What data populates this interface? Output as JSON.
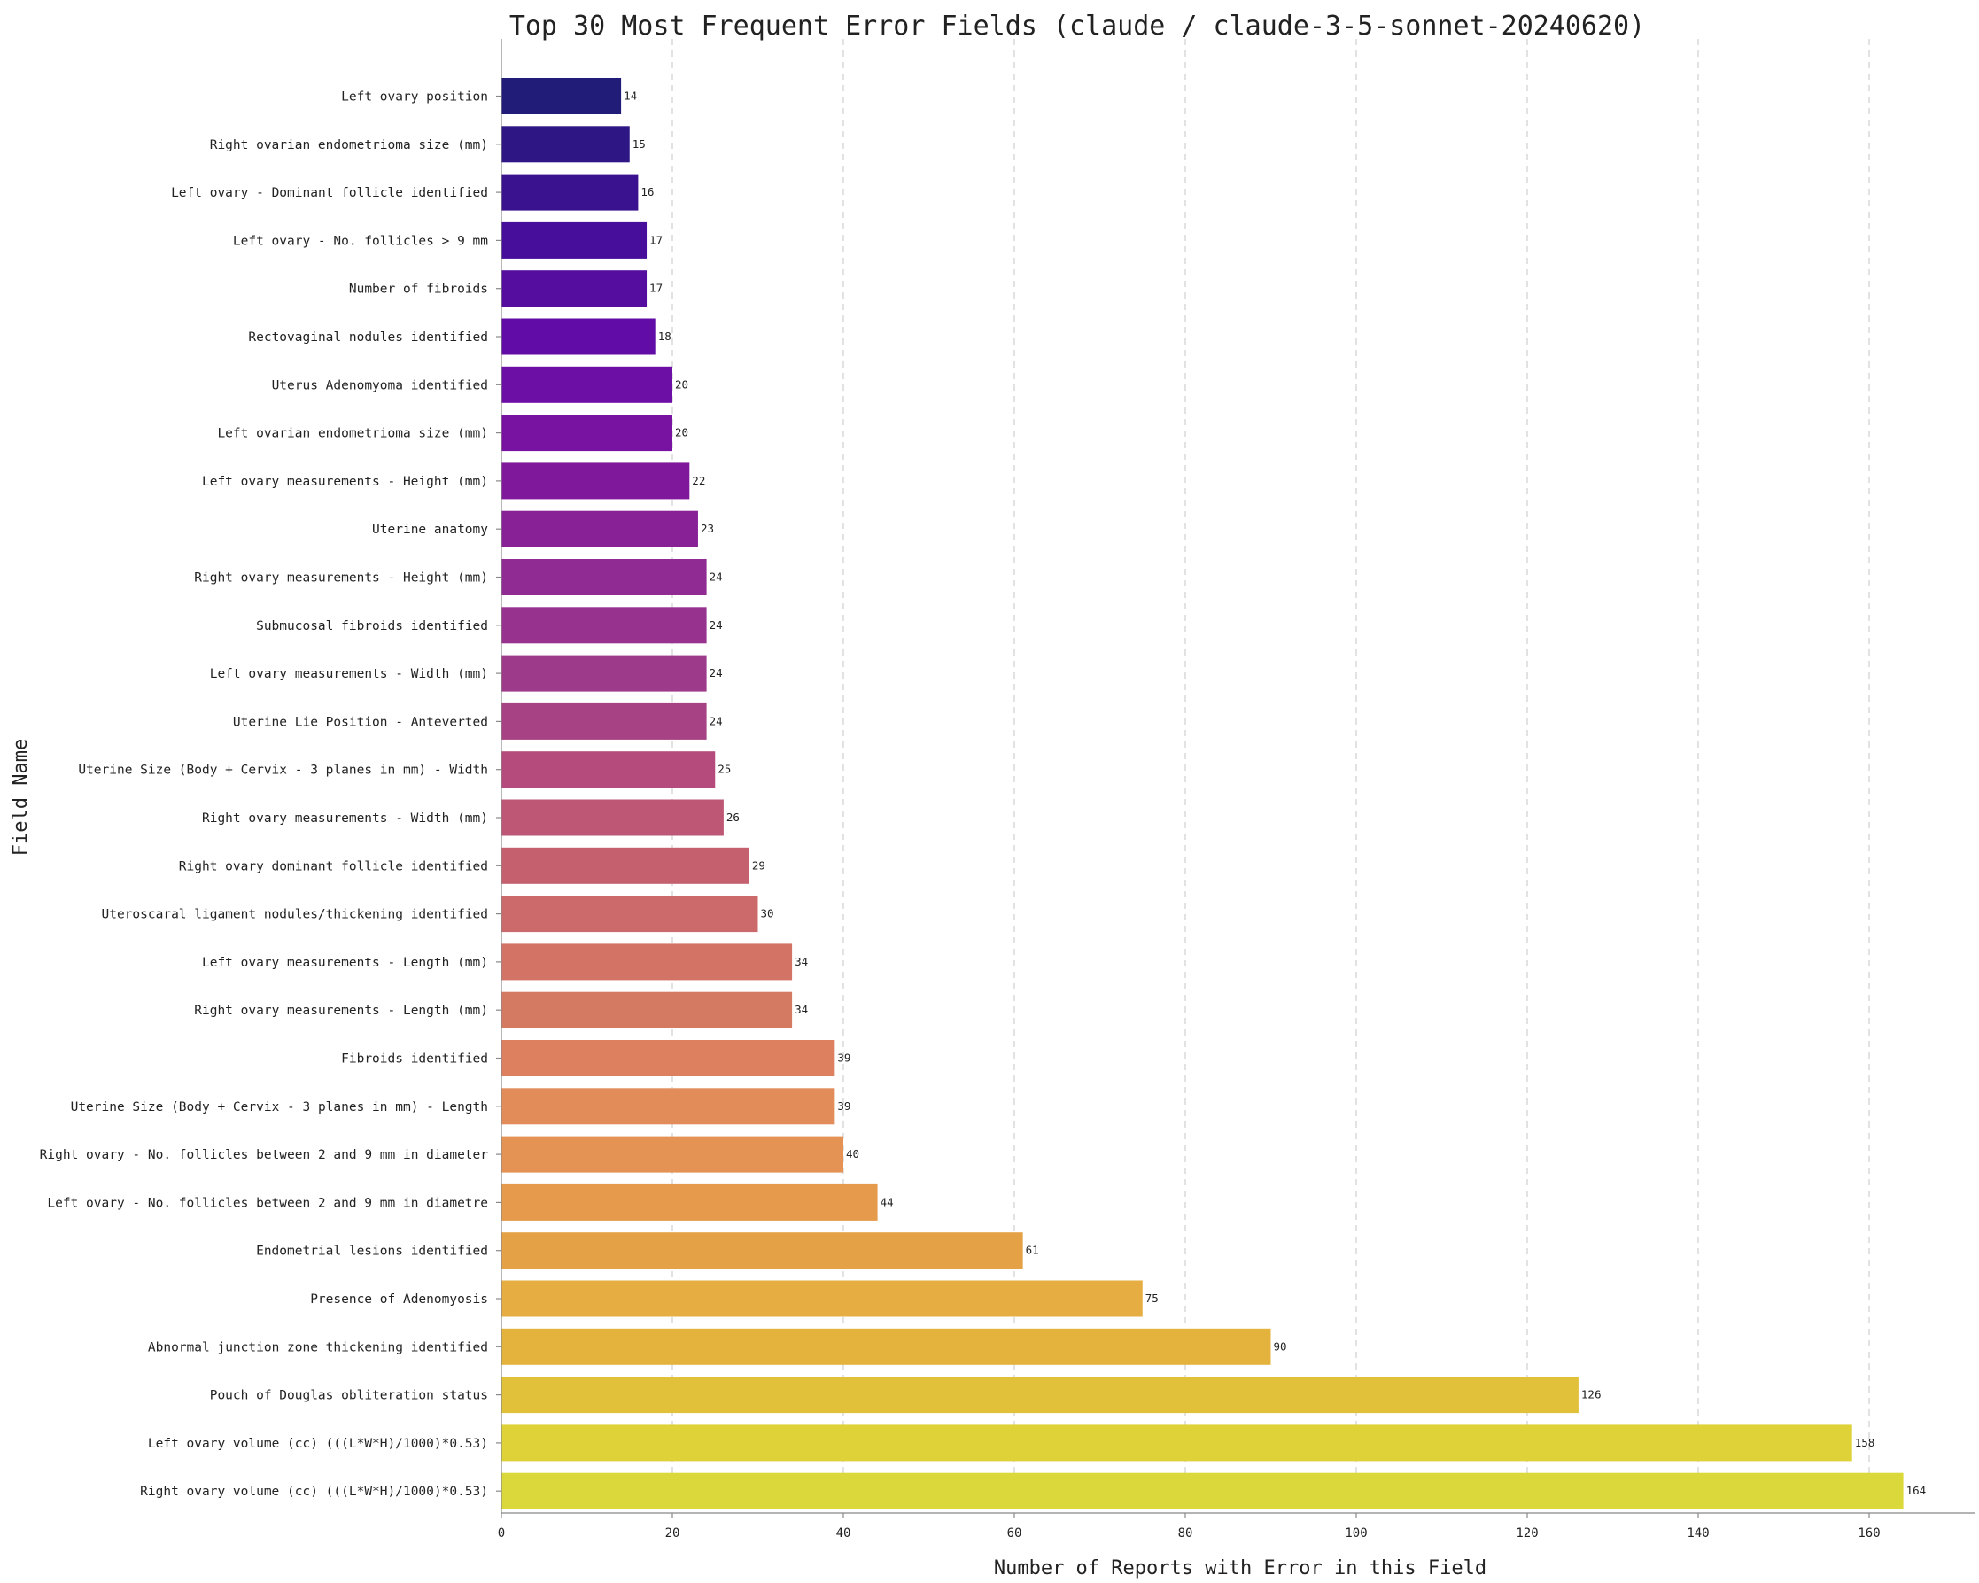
{
  "chart_data": {
    "type": "bar",
    "orientation": "horizontal",
    "title": "Top 30 Most Frequent Error Fields (claude / claude-3-5-sonnet-20240620)",
    "xlabel": "Number of Reports with Error in this Field",
    "ylabel": "Field Name",
    "xlim": [
      0,
      170
    ],
    "xticks": [
      0,
      20,
      40,
      60,
      80,
      100,
      120,
      140,
      160
    ],
    "grid": "x dashed",
    "legend": "none",
    "palette": "plasma",
    "categories": [
      "Left ovary position",
      "Right ovarian endometrioma size (mm)",
      "Left ovary - Dominant follicle identified",
      "Left ovary - No. follicles > 9 mm",
      "Number of fibroids",
      "Rectovaginal nodules identified",
      "Uterus Adenomyoma identified",
      "Left ovarian endometrioma size (mm)",
      "Left ovary measurements - Height (mm)",
      "Uterine anatomy",
      "Right ovary measurements - Height (mm)",
      "Submucosal fibroids identified",
      "Left ovary measurements - Width (mm)",
      "Uterine Lie Position - Anteverted",
      "Uterine Size (Body + Cervix - 3 planes in mm) - Width",
      "Right ovary measurements - Width (mm)",
      "Right ovary dominant follicle identified",
      "Uteroscaral ligament nodules/thickening identified",
      "Left ovary measurements - Length (mm)",
      "Right ovary measurements - Length (mm)",
      "Fibroids identified",
      "Uterine Size (Body + Cervix - 3 planes in mm) - Length",
      "Right ovary -  No. follicles between 2 and 9 mm in diameter",
      "Left ovary - No. follicles between 2 and 9 mm in diametre",
      "Endometrial lesions identified",
      "Presence of Adenomyosis",
      "Abnormal junction zone thickening identified",
      "Pouch of Douglas obliteration status",
      "Left ovary volume (cc) (((L*W*H)/1000)*0.53)",
      "Right ovary volume (cc) (((L*W*H)/1000)*0.53)"
    ],
    "values": [
      14,
      15,
      16,
      17,
      17,
      18,
      20,
      20,
      22,
      23,
      24,
      24,
      24,
      24,
      25,
      26,
      29,
      30,
      34,
      34,
      39,
      39,
      40,
      44,
      61,
      75,
      90,
      126,
      158,
      164
    ],
    "data_labels": [
      "14",
      "15",
      "16",
      "17",
      "17",
      "18",
      "20",
      "20",
      "22",
      "23",
      "24",
      "24",
      "24",
      "24",
      "25",
      "26",
      "29",
      "30",
      "34",
      "34",
      "39",
      "39",
      "40",
      "44",
      "61",
      "75",
      "90",
      "126",
      "158",
      "164"
    ],
    "colors": [
      "#221c79",
      "#2e1684",
      "#3a1290",
      "#460e9a",
      "#550da0",
      "#610ca6",
      "#6c0fa5",
      "#7813a1",
      "#80189c",
      "#882196",
      "#8f2b92",
      "#97338f",
      "#9d3a89",
      "#a74384",
      "#b54a7c",
      "#bd5775",
      "#c5606f",
      "#cc6a6b",
      "#d27366",
      "#d57a62",
      "#dd8060",
      "#e28c5a",
      "#e49355",
      "#e59a4c",
      "#e4a146",
      "#e5ad42",
      "#e4b33e",
      "#e1c03a",
      "#dfd238",
      "#dbd83c"
    ]
  }
}
